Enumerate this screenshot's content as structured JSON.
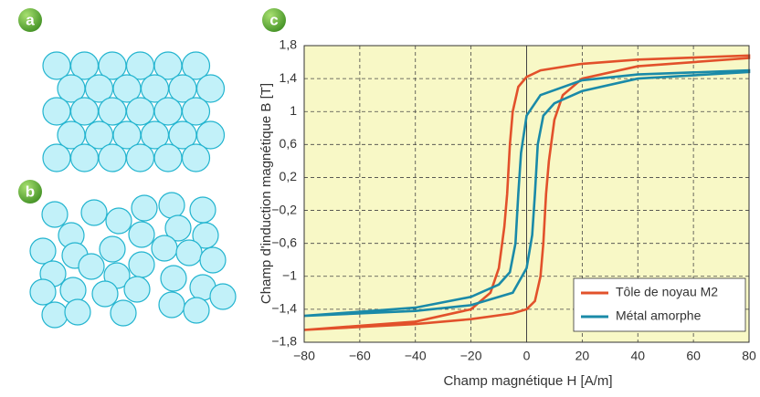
{
  "figure_labels": [
    "a",
    "b"
  ],
  "chart_data": {
    "type": "line",
    "panel_label": "c",
    "xlabel": "Champ magnétique H [A/m]",
    "ylabel": "Champ d'induction magnétique B [T]",
    "xlim": [
      -80,
      80
    ],
    "xticks": [
      {
        "value": -80,
        "label": "−80"
      },
      {
        "value": -60,
        "label": "−60"
      },
      {
        "value": -40,
        "label": "−40"
      },
      {
        "value": -20,
        "label": "−20"
      },
      0,
      20,
      40,
      60,
      80
    ],
    "ylim": [
      -1.8,
      1.8
    ],
    "yticks": [
      {
        "value": 1.8,
        "label": "1,8"
      },
      {
        "value": 1.4,
        "label": "1,4"
      },
      1,
      {
        "value": 0.6,
        "label": "0,6"
      },
      {
        "value": 0.2,
        "label": "0,2"
      },
      {
        "value": -0.2,
        "label": "−0,2"
      },
      {
        "value": -0.6,
        "label": "−0,6"
      },
      {
        "value": -1,
        "label": "−1"
      },
      {
        "value": -1.4,
        "label": "−1,4"
      },
      {
        "value": -1.8,
        "label": "−1,8"
      }
    ],
    "grid": true,
    "legend": "lower right",
    "series": [
      {
        "name": "Tôle de noyau M2",
        "color": "#e2512b",
        "x": [
          -80,
          -40,
          -20,
          -5,
          0,
          3,
          5,
          6,
          7,
          8,
          10,
          13,
          20,
          40,
          80,
          80,
          40,
          20,
          5,
          0,
          -3,
          -5,
          -6,
          -7,
          -8,
          -10,
          -13,
          -20,
          -40,
          -80
        ],
        "values": [
          -1.65,
          -1.58,
          -1.52,
          -1.45,
          -1.4,
          -1.3,
          -1.0,
          -0.6,
          0,
          0.4,
          0.9,
          1.2,
          1.4,
          1.55,
          1.65,
          1.68,
          1.63,
          1.58,
          1.5,
          1.42,
          1.3,
          1.0,
          0.6,
          0,
          -0.4,
          -0.9,
          -1.2,
          -1.4,
          -1.55,
          -1.65
        ]
      },
      {
        "name": "Métal amorphe",
        "color": "#1a8aa8",
        "x": [
          -80,
          -40,
          -20,
          -5,
          0,
          2,
          3,
          4,
          6,
          10,
          20,
          40,
          80,
          80,
          40,
          20,
          5,
          0,
          -2,
          -3,
          -4,
          -6,
          -10,
          -20,
          -40,
          -80
        ],
        "values": [
          -1.48,
          -1.42,
          -1.35,
          -1.2,
          -0.9,
          -0.5,
          0,
          0.6,
          0.95,
          1.1,
          1.25,
          1.4,
          1.48,
          1.5,
          1.45,
          1.38,
          1.2,
          0.95,
          0.5,
          0,
          -0.6,
          -0.95,
          -1.1,
          -1.25,
          -1.38,
          -1.48
        ]
      }
    ]
  }
}
